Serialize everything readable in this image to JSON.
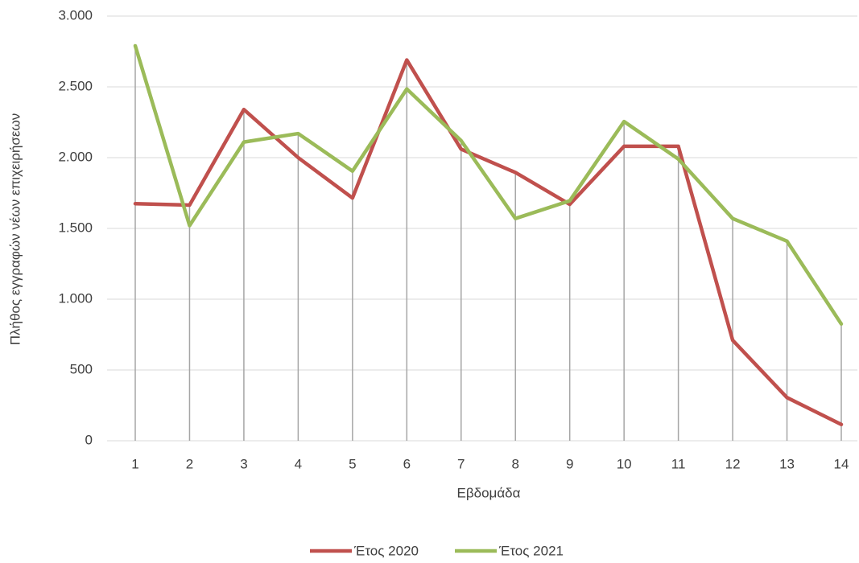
{
  "chart_data": {
    "type": "line",
    "x_label": "Εβδομάδα",
    "y_label": "Πλήθος εγγραφών νέων επιχειρήσεων",
    "categories": [
      1,
      2,
      3,
      4,
      5,
      6,
      7,
      8,
      9,
      10,
      11,
      12,
      13,
      14
    ],
    "series": [
      {
        "name": "Έτος 2020",
        "color": "#c0504d",
        "values": [
          1675,
          1665,
          2340,
          2000,
          1715,
          2690,
          2060,
          1895,
          1670,
          2080,
          2080,
          710,
          305,
          115
        ]
      },
      {
        "name": "Έτος 2021",
        "color": "#9bbb59",
        "values": [
          2790,
          1520,
          2110,
          2170,
          1905,
          2485,
          2120,
          1570,
          1695,
          2255,
          1990,
          1570,
          1410,
          825
        ]
      }
    ],
    "ylim": [
      0,
      3000
    ],
    "yticks": [
      0,
      500,
      {
        "value": 1000,
        "label": "1.000"
      },
      {
        "value": 1500,
        "label": "1.500"
      },
      {
        "value": 2000,
        "label": "2.000"
      },
      {
        "value": 2500,
        "label": "2.500"
      },
      {
        "value": 3000,
        "label": "3.000"
      }
    ],
    "grid": true,
    "drop_lines": true,
    "legend": "bottom"
  }
}
